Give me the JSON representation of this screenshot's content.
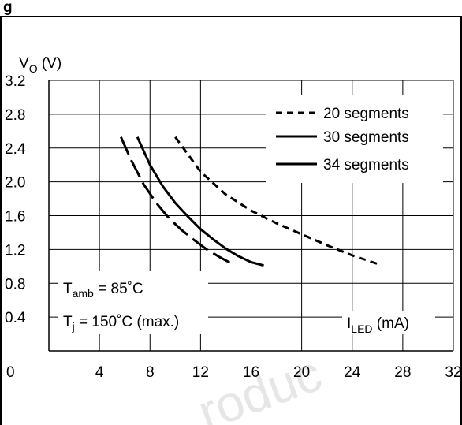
{
  "page": {
    "header_fragment": "g"
  },
  "watermark": "roduc",
  "chart_data": {
    "type": "line",
    "x_unit_label": {
      "main": "I",
      "sub": "LED",
      "unit": " (mA)"
    },
    "y_unit_label": {
      "main": "V",
      "sub": "O",
      "unit": " (V)"
    },
    "xlim": [
      0,
      32
    ],
    "ylim": [
      0,
      3.2
    ],
    "x_ticks": [
      0,
      4,
      8,
      12,
      16,
      20,
      24,
      28,
      32
    ],
    "x_tick_labels": [
      "0",
      "4",
      "8",
      "12",
      "16",
      "20",
      "24",
      "28",
      "32"
    ],
    "y_ticks": [
      0.4,
      0.8,
      1.2,
      1.6,
      2.0,
      2.4,
      2.8,
      3.2
    ],
    "y_tick_labels": [
      "0.4",
      "0.8",
      "1.2",
      "1.6",
      "2.0",
      "2.4",
      "2.8",
      "3.2"
    ],
    "grid": true,
    "legend_position": "top-right",
    "series": [
      {
        "name": "20 segments",
        "style": "short-dash",
        "x": [
          10,
          12,
          14,
          16,
          18,
          20,
          22,
          24,
          26
        ],
        "y": [
          2.53,
          2.12,
          1.85,
          1.66,
          1.51,
          1.38,
          1.25,
          1.13,
          1.03
        ]
      },
      {
        "name": "30 segments",
        "style": "solid",
        "x": [
          7,
          8,
          9,
          10,
          11,
          12,
          13,
          14,
          15,
          16,
          17
        ],
        "y": [
          2.53,
          2.2,
          1.95,
          1.75,
          1.59,
          1.44,
          1.32,
          1.21,
          1.12,
          1.05,
          1.01
        ]
      },
      {
        "name": "34 segments",
        "style": "long-dash",
        "x": [
          5.7,
          6.5,
          7.5,
          8.5,
          9.5,
          10.5,
          11.5,
          12.5,
          13.5,
          14.5
        ],
        "y": [
          2.53,
          2.26,
          1.97,
          1.75,
          1.57,
          1.43,
          1.31,
          1.2,
          1.11,
          1.03
        ]
      }
    ],
    "annotations": {
      "tamb": {
        "main": "T",
        "sub": "amb",
        "rest": " = 85˚C"
      },
      "tj": {
        "main": "T",
        "sub": "j",
        "rest": " = 150˚C (max.)"
      }
    }
  }
}
